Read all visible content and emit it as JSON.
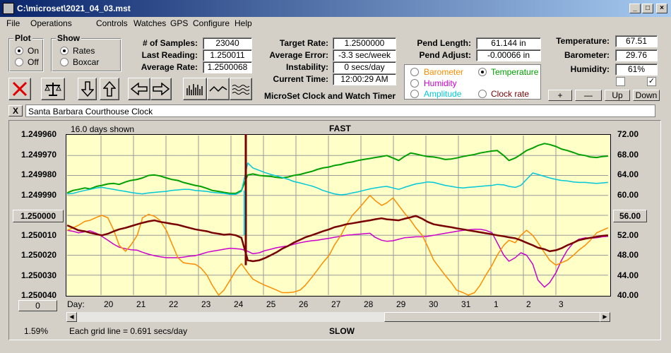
{
  "window": {
    "title": "C:\\microset\\2021_04_03.mst"
  },
  "menu": [
    "File",
    "Operations",
    "Controls",
    "Watches",
    "GPS",
    "Configure",
    "Help"
  ],
  "plot_group": {
    "title": "Plot",
    "on": "On",
    "off": "Off"
  },
  "show_group": {
    "title": "Show",
    "rates": "Rates",
    "boxcar": "Boxcar"
  },
  "stats": {
    "samples_label": "# of Samples:",
    "samples": "23040",
    "last_label": "Last Reading:",
    "last": "1.250011",
    "avg_label": "Average Rate:",
    "avg": "1.2500068"
  },
  "rates": {
    "target_label": "Target Rate:",
    "target": "1.2500000",
    "err_label": "Average Error:",
    "err": "-3.3 sec/week",
    "inst_label": "Instability:",
    "inst": "0 secs/day",
    "time_label": "Current Time:",
    "time": "12:00:29 AM",
    "caption": "MicroSet Clock and Watch Timer"
  },
  "pendulum": {
    "len_label": "Pend Length:",
    "len": "61.144 in",
    "adj_label": "Pend Adjust:",
    "adj": "-0.00066 in"
  },
  "sensor_select": {
    "barometer": "Barometer",
    "temperature": "Temperature",
    "humidity": "Humidity",
    "amplitude": "Amplitude",
    "clock_rate": "Clock rate"
  },
  "env": {
    "temp_label": "Temperature:",
    "temp": "67.51",
    "baro_label": "Barometer:",
    "baro": "29.76",
    "hum_label": "Humidity:",
    "hum": "61%"
  },
  "env_buttons": {
    "plus": "+",
    "minus": "—",
    "up": "Up",
    "down": "Down"
  },
  "description": "Santa Barbara Courthouse Clock",
  "close_x": "X",
  "colors": {
    "barometer": "#ff8c00",
    "temperature": "#00a000",
    "humidity": "#cc00cc",
    "amplitude": "#00c8d8",
    "clock_rate": "#7a0000",
    "plot_bg": "#ffffc8"
  },
  "chart_data": {
    "type": "line",
    "days_shown": "16.0 days shown",
    "top_label": "FAST",
    "bottom_label": "SLOW",
    "grid_note": "Each grid line = 0.691 secs/day",
    "left_ticks": [
      "1.249960",
      "1.249970",
      "1.249980",
      "1.249990",
      "1.250000",
      "1.250010",
      "1.250020",
      "1.250030",
      "1.250040"
    ],
    "right_ticks": [
      "72.00",
      "68.00",
      "64.00",
      "60.00",
      "56.00",
      "52.00",
      "48.00",
      "44.00",
      "40.00"
    ],
    "left_center_button": "1.250000",
    "right_center_button": "56.00",
    "day_label": "Day:",
    "days": [
      "20",
      "21",
      "22",
      "23",
      "24",
      "25",
      "26",
      "27",
      "28",
      "29",
      "30",
      "31",
      "1",
      "2",
      "3"
    ],
    "scroll_value": "0",
    "percent": "1.59%",
    "series": [
      {
        "name": "Temperature",
        "axis": "right",
        "values": [
          60.5,
          61,
          61.2,
          61.5,
          61.3,
          61.8,
          62,
          62.3,
          62.4,
          62.2,
          62.7,
          63,
          63.2,
          63.5,
          64,
          64.1,
          63.9,
          63.5,
          63.2,
          63,
          62.6,
          62.3,
          62,
          61.8,
          61.4,
          61,
          60.8,
          60.6,
          60.4,
          60.4,
          61,
          64.1,
          64.3,
          64,
          63.9,
          63.8,
          63.6,
          63.5,
          63.7,
          64,
          64.2,
          64.5,
          64.8,
          65.2,
          65.5,
          65.7,
          66,
          66.2,
          66.5,
          66.7,
          67,
          67.2,
          67.4,
          67.6,
          67.8,
          68,
          67.5,
          67,
          67.8,
          68.5,
          68.3,
          68,
          67.8,
          67.7,
          67.5,
          67.2,
          67.3,
          67.5,
          67.8,
          68,
          68.2,
          68.5,
          68.7,
          68.9,
          69,
          68,
          67,
          67.5,
          68.2,
          69,
          69.5,
          70,
          70.4,
          70.2,
          69.8,
          69.3,
          69,
          68.6,
          68.2,
          68,
          67.7,
          67.6,
          67.8,
          67.9
        ]
      },
      {
        "name": "Amplitude",
        "axis": "right",
        "values": [
          60.3,
          60.4,
          60.7,
          61,
          61.2,
          61.5,
          61.6,
          61.4,
          61.2,
          61,
          60.8,
          60.6,
          60.4,
          60.3,
          60.5,
          60.6,
          60.7,
          60.8,
          61,
          61.1,
          61.2,
          61.2,
          61,
          60.9,
          60.8,
          60.6,
          60.5,
          60.4,
          60.2,
          60.2,
          60.8,
          66.5,
          65.5,
          65,
          64.6,
          64.2,
          63.9,
          63.6,
          63.2,
          62.8,
          62.5,
          62.2,
          61.9,
          61.5,
          61,
          60.6,
          60.3,
          60.1,
          60.2,
          60.5,
          60.7,
          61,
          61.3,
          61.5,
          61.7,
          61.8,
          61.5,
          61.2,
          61.6,
          62,
          62.3,
          62.5,
          62.7,
          62.6,
          62.3,
          62,
          61.8,
          61.6,
          61.5,
          61.6,
          61.7,
          61.8,
          61.9,
          62,
          62.2,
          62.1,
          61.8,
          61.6,
          62,
          63.2,
          64.5,
          64.2,
          63.8,
          63.5,
          63.2,
          63,
          62.9,
          62.7,
          62.6,
          62.6,
          62.5,
          62.4,
          62.5,
          62.6
        ]
      },
      {
        "name": "Humidity",
        "axis": "right",
        "values": [
          53,
          52.8,
          52.5,
          52.7,
          52.9,
          52.4,
          51.8,
          51,
          50.2,
          49.6,
          49.3,
          49.1,
          49,
          48.6,
          48.2,
          47.9,
          47.7,
          47.5,
          47.5,
          47.5,
          47.6,
          47.8,
          47.9,
          48.2,
          48.6,
          48.8,
          49,
          49.2,
          49.4,
          49.3,
          49.2,
          48.8,
          48.3,
          48.5,
          48.9,
          49.2,
          49.5,
          49.7,
          49.9,
          50.2,
          50.5,
          50.7,
          50.9,
          51,
          51.2,
          51.4,
          51.6,
          51.8,
          52,
          52.1,
          52.2,
          52.3,
          52.4,
          51.6,
          51,
          50.8,
          50.9,
          51.2,
          51.5,
          51.6,
          51.7,
          51.7,
          51.8,
          52,
          52.2,
          52.4,
          52.6,
          52.8,
          53,
          53.1,
          53.2,
          53.2,
          53,
          52.5,
          50.5,
          48,
          46.8,
          47.5,
          48.5,
          48,
          46.2,
          43,
          41.6,
          42.5,
          44.5,
          47,
          49,
          50.5,
          51.2,
          51.5,
          51.4,
          51.5,
          51.7,
          51.8
        ]
      },
      {
        "name": "Barometer",
        "axis": "right",
        "values": [
          53,
          53.5,
          54,
          54.8,
          55,
          55.6,
          56,
          55.5,
          53,
          50,
          48.8,
          50,
          52,
          55.5,
          56.2,
          55.8,
          55,
          53,
          50.5,
          47.5,
          46.5,
          46.3,
          46.2,
          45.5,
          44,
          42,
          40,
          41,
          43,
          45,
          46.3,
          44.5,
          43.2,
          42.5,
          42,
          41.5,
          41,
          40.5,
          40.5,
          40.6,
          41,
          42,
          43.5,
          45,
          46.5,
          48,
          50,
          52,
          54,
          56,
          57.2,
          58.5,
          60,
          59,
          58,
          58.5,
          59.5,
          58,
          56.5,
          55,
          53.5,
          52,
          49.8,
          47,
          45.5,
          44,
          42.5,
          41,
          40.5,
          40,
          40.5,
          42,
          44,
          46,
          48,
          50,
          51,
          50.5,
          52,
          53,
          52,
          50.5,
          48.5,
          47,
          46,
          46.5,
          47,
          48,
          49,
          50,
          51,
          52.5,
          53,
          53.5
        ]
      },
      {
        "name": "Clock rate",
        "axis": "right",
        "values": [
          54,
          53.5,
          53,
          52.8,
          52.5,
          52.2,
          52,
          52.3,
          52.8,
          53.2,
          53.5,
          53.8,
          54.2,
          54.5,
          54.8,
          55,
          54.7,
          54.5,
          54.3,
          54.1,
          53.8,
          53.5,
          53.2,
          53,
          52.8,
          52.5,
          52.3,
          52.1,
          52.2,
          52,
          51.5,
          47,
          46.8,
          47,
          47.4,
          48,
          48.6,
          49.3,
          49.9,
          50.5,
          51.1,
          51.6,
          52,
          52.4,
          52.8,
          53.2,
          53.6,
          53.9,
          54.2,
          54.4,
          54.6,
          54.8,
          55,
          55.2,
          55.4,
          55.2,
          55.1,
          55,
          55.3,
          55.6,
          55.9,
          55.3,
          54.7,
          54.2,
          54,
          53.8,
          53.6,
          53.4,
          53.2,
          53,
          52.8,
          52.6,
          52.4,
          52.2,
          52,
          51.8,
          51.6,
          51.4,
          51,
          50.5,
          50,
          49.5,
          49.2,
          48.8,
          49,
          49.4,
          50,
          50.5,
          51,
          51.3,
          51.5,
          51.7,
          51.9,
          52
        ]
      }
    ],
    "spike": {
      "series": "Clock rate",
      "day_index": 4.5
    }
  }
}
